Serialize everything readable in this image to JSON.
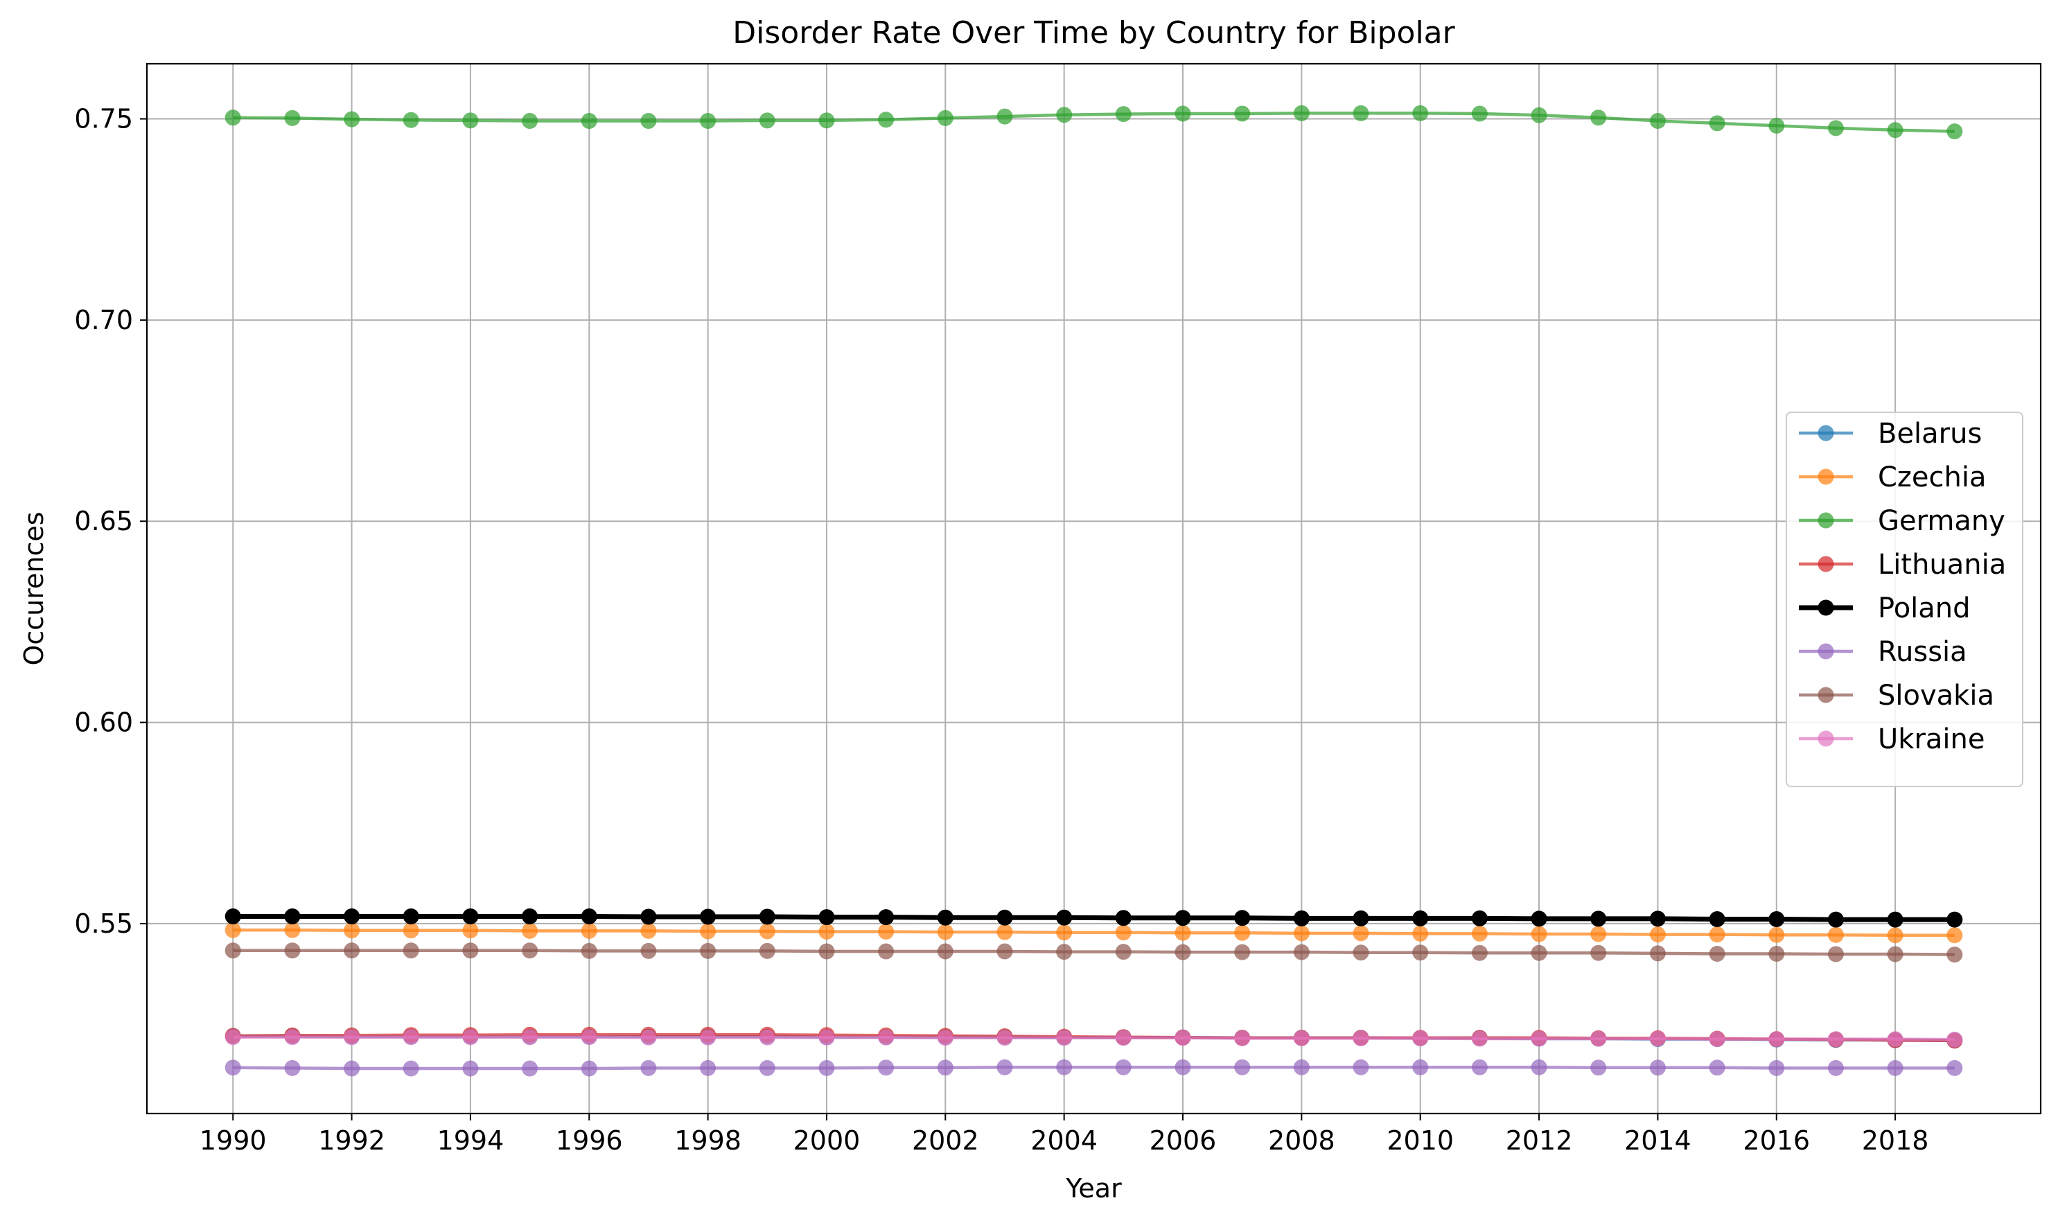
{
  "chart_data": {
    "type": "line",
    "title": "Disorder Rate Over Time by Country for Bipolar",
    "xlabel": "Year",
    "ylabel": "Occurences",
    "grid": true,
    "legend_position": "center-right",
    "x": [
      1990,
      1991,
      1992,
      1993,
      1994,
      1995,
      1996,
      1997,
      1998,
      1999,
      2000,
      2001,
      2002,
      2003,
      2004,
      2005,
      2006,
      2007,
      2008,
      2009,
      2010,
      2011,
      2012,
      2013,
      2014,
      2015,
      2016,
      2017,
      2018,
      2019
    ],
    "xlim": [
      1988.55,
      2020.45
    ],
    "ylim": [
      0.5028,
      0.7637
    ],
    "x_ticks": [
      "1990",
      "1992",
      "1994",
      "1996",
      "1998",
      "2000",
      "2002",
      "2004",
      "2006",
      "2008",
      "2010",
      "2012",
      "2014",
      "2016",
      "2018"
    ],
    "y_ticks": [
      "0.55",
      "0.60",
      "0.65",
      "0.70",
      "0.75"
    ],
    "series": [
      {
        "name": "Belarus",
        "color": "#1f77b4",
        "highlight": false,
        "values": [
          0.522,
          0.522,
          0.5219,
          0.5219,
          0.5219,
          0.5219,
          0.5219,
          0.5219,
          0.5219,
          0.5219,
          0.5218,
          0.5218,
          0.5218,
          0.5218,
          0.5217,
          0.5217,
          0.5217,
          0.5216,
          0.5216,
          0.5216,
          0.5215,
          0.5215,
          0.5214,
          0.5214,
          0.5213,
          0.5213,
          0.5212,
          0.5211,
          0.5211,
          0.521
        ]
      },
      {
        "name": "Czechia",
        "color": "#ff7f0e",
        "highlight": false,
        "values": [
          0.5484,
          0.5484,
          0.5483,
          0.5483,
          0.5483,
          0.5482,
          0.5482,
          0.5482,
          0.5481,
          0.5481,
          0.548,
          0.548,
          0.5479,
          0.5479,
          0.5478,
          0.5478,
          0.5477,
          0.5477,
          0.5476,
          0.5476,
          0.5475,
          0.5475,
          0.5474,
          0.5474,
          0.5473,
          0.5473,
          0.5472,
          0.5472,
          0.5471,
          0.5471
        ]
      },
      {
        "name": "Germany",
        "color": "#2ca02c",
        "highlight": false,
        "values": [
          0.7503,
          0.7502,
          0.7499,
          0.7497,
          0.7496,
          0.7495,
          0.7495,
          0.7495,
          0.7495,
          0.7496,
          0.7496,
          0.7498,
          0.7502,
          0.7506,
          0.751,
          0.7512,
          0.7513,
          0.7513,
          0.7514,
          0.7514,
          0.7514,
          0.7513,
          0.7509,
          0.7503,
          0.7495,
          0.7489,
          0.7483,
          0.7477,
          0.7472,
          0.7469
        ]
      },
      {
        "name": "Lithuania",
        "color": "#d62728",
        "highlight": false,
        "values": [
          0.5221,
          0.5222,
          0.5222,
          0.5223,
          0.5223,
          0.5224,
          0.5224,
          0.5224,
          0.5224,
          0.5224,
          0.5223,
          0.5222,
          0.5221,
          0.522,
          0.5219,
          0.5218,
          0.5217,
          0.5216,
          0.5216,
          0.5216,
          0.5216,
          0.5216,
          0.5216,
          0.5215,
          0.5215,
          0.5214,
          0.5213,
          0.5212,
          0.521,
          0.5209
        ]
      },
      {
        "name": "Poland",
        "color": "#000000",
        "highlight": true,
        "values": [
          0.5518,
          0.5518,
          0.5518,
          0.5518,
          0.5518,
          0.5518,
          0.5518,
          0.5517,
          0.5517,
          0.5517,
          0.5516,
          0.5516,
          0.5515,
          0.5515,
          0.5515,
          0.5514,
          0.5514,
          0.5514,
          0.5513,
          0.5513,
          0.5513,
          0.5513,
          0.5512,
          0.5512,
          0.5512,
          0.5511,
          0.5511,
          0.551,
          0.551,
          0.551
        ]
      },
      {
        "name": "Russia",
        "color": "#9467bd",
        "highlight": false,
        "values": [
          0.5142,
          0.5141,
          0.514,
          0.514,
          0.514,
          0.514,
          0.514,
          0.5141,
          0.5141,
          0.5141,
          0.5141,
          0.5142,
          0.5142,
          0.5143,
          0.5143,
          0.5143,
          0.5143,
          0.5143,
          0.5143,
          0.5143,
          0.5143,
          0.5143,
          0.5143,
          0.5142,
          0.5142,
          0.5142,
          0.5141,
          0.5141,
          0.5141,
          0.5141
        ]
      },
      {
        "name": "Slovakia",
        "color": "#8c564b",
        "highlight": false,
        "values": [
          0.5433,
          0.5433,
          0.5433,
          0.5433,
          0.5433,
          0.5433,
          0.5432,
          0.5432,
          0.5432,
          0.5432,
          0.5431,
          0.5431,
          0.5431,
          0.5431,
          0.543,
          0.543,
          0.5429,
          0.5429,
          0.5429,
          0.5428,
          0.5428,
          0.5427,
          0.5427,
          0.5427,
          0.5426,
          0.5425,
          0.5425,
          0.5424,
          0.5424,
          0.5423
        ]
      },
      {
        "name": "Ukraine",
        "color": "#e377c2",
        "highlight": false,
        "values": [
          0.5218,
          0.5218,
          0.5218,
          0.5218,
          0.5218,
          0.5218,
          0.5218,
          0.5217,
          0.5217,
          0.5217,
          0.5217,
          0.5217,
          0.5216,
          0.5216,
          0.5216,
          0.5216,
          0.5216,
          0.5215,
          0.5215,
          0.5215,
          0.5215,
          0.5214,
          0.5214,
          0.5214,
          0.5214,
          0.5213,
          0.5213,
          0.5213,
          0.5213,
          0.5212
        ]
      }
    ]
  }
}
